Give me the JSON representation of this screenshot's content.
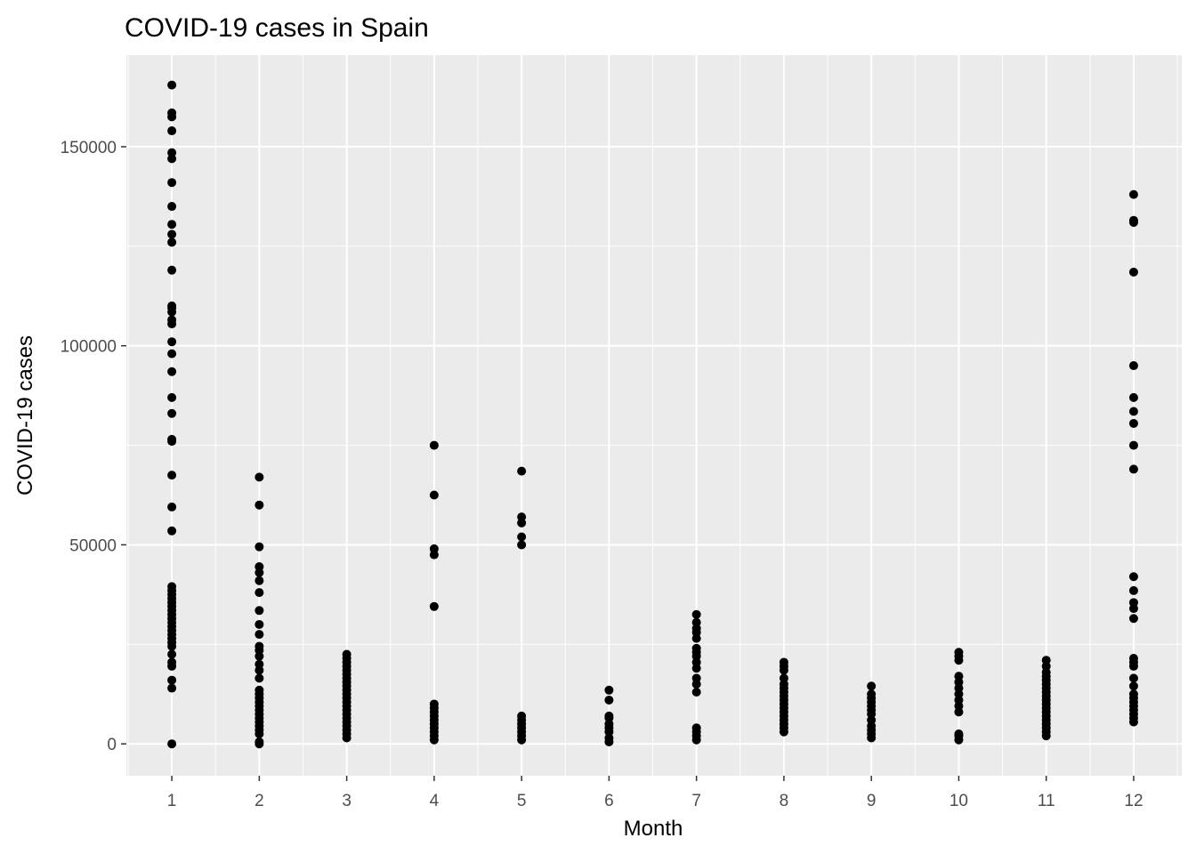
{
  "chart_data": {
    "type": "scatter",
    "title": "COVID-19 cases in Spain",
    "xlabel": "Month",
    "ylabel": "COVID-19 cases",
    "x_ticks": [
      1,
      2,
      3,
      4,
      5,
      6,
      7,
      8,
      9,
      10,
      11,
      12
    ],
    "y_ticks": [
      0,
      50000,
      100000,
      150000
    ],
    "x_tick_labels": [
      "1",
      "2",
      "3",
      "4",
      "5",
      "6",
      "7",
      "8",
      "9",
      "10",
      "11",
      "12"
    ],
    "y_tick_labels": [
      "0",
      "50000",
      "100000",
      "150000"
    ],
    "xlim": [
      0.48,
      12.55
    ],
    "ylim": [
      -8000,
      173000
    ],
    "grid": true,
    "background": "#ebebeb",
    "grid_color": "#ffffff",
    "point_color": "#000000",
    "points": [
      {
        "month": 1,
        "cases": [
          0,
          14000,
          16000,
          19500,
          20500,
          22500,
          24500,
          25500,
          26500,
          27500,
          28500,
          29500,
          30500,
          31500,
          32500,
          33500,
          34500,
          35500,
          36500,
          37500,
          38500,
          39500,
          53500,
          59500,
          67500,
          76000,
          76500,
          83000,
          87000,
          93500,
          98000,
          101000,
          105500,
          106500,
          108500,
          109500,
          110000,
          119000,
          126000,
          128000,
          130500,
          135000,
          141000,
          147000,
          148500,
          154000,
          157500,
          158500,
          165500
        ]
      },
      {
        "month": 2,
        "cases": [
          0,
          500,
          2500,
          3500,
          4500,
          5500,
          6500,
          7500,
          8500,
          9500,
          10500,
          11500,
          12500,
          13500,
          16500,
          18500,
          20000,
          22000,
          23500,
          24500,
          27500,
          30000,
          33500,
          38000,
          41000,
          43000,
          44500,
          49500,
          60000,
          67000
        ]
      },
      {
        "month": 3,
        "cases": [
          1500,
          2500,
          3500,
          4500,
          5500,
          6500,
          7500,
          8500,
          9500,
          10500,
          11500,
          12500,
          13500,
          14500,
          15500,
          16500,
          17500,
          18500,
          19500,
          20500,
          21500,
          22500
        ]
      },
      {
        "month": 4,
        "cases": [
          1000,
          2000,
          3000,
          4000,
          5000,
          6000,
          7000,
          8000,
          9000,
          10000,
          34500,
          47500,
          49000,
          62500,
          75000
        ]
      },
      {
        "month": 5,
        "cases": [
          1000,
          2000,
          3000,
          4000,
          5000,
          6000,
          7000,
          50000,
          52000,
          55500,
          57000,
          68500
        ]
      },
      {
        "month": 6,
        "cases": [
          500,
          1500,
          3000,
          4000,
          5000,
          6500,
          7000,
          11000,
          13500
        ]
      },
      {
        "month": 7,
        "cases": [
          1000,
          2000,
          3000,
          4000,
          13000,
          15000,
          16500,
          19000,
          20500,
          22000,
          23000,
          24000,
          26500,
          28000,
          29000,
          30500,
          32500
        ]
      },
      {
        "month": 8,
        "cases": [
          3000,
          4000,
          5000,
          6000,
          7000,
          8000,
          9000,
          10000,
          11000,
          12000,
          13000,
          14000,
          15000,
          16500,
          18500,
          19500,
          20500
        ]
      },
      {
        "month": 9,
        "cases": [
          1500,
          2500,
          3500,
          4500,
          6000,
          7500,
          8500,
          9500,
          10500,
          11500,
          12500,
          14500
        ]
      },
      {
        "month": 10,
        "cases": [
          1000,
          2000,
          2500,
          8000,
          9500,
          11000,
          12500,
          14000,
          15500,
          17000,
          21000,
          22000,
          23000
        ]
      },
      {
        "month": 11,
        "cases": [
          2000,
          3000,
          4000,
          5000,
          6000,
          7000,
          8000,
          9000,
          10000,
          11000,
          12000,
          13000,
          14000,
          15000,
          16000,
          17000,
          18000,
          19500,
          21000
        ]
      },
      {
        "month": 12,
        "cases": [
          5500,
          6500,
          7500,
          8500,
          9500,
          10500,
          11500,
          12500,
          14500,
          16500,
          19500,
          20500,
          21500,
          31500,
          34000,
          35500,
          38500,
          42000,
          69000,
          75000,
          80500,
          83500,
          87000,
          95000,
          118500,
          131000,
          131500,
          138000
        ]
      }
    ]
  }
}
